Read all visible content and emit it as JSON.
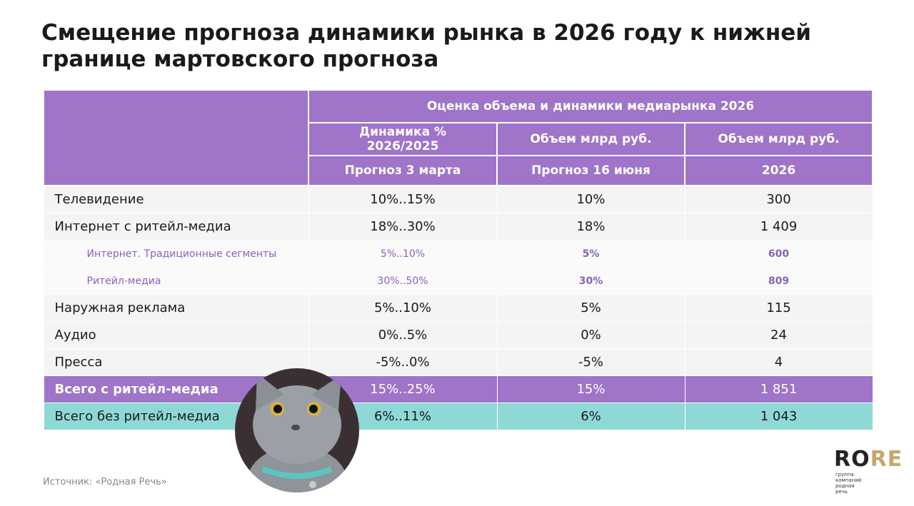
{
  "title": "Смещение прогноза динамики рынка в 2026 году к нижней границе мартовского прогноза",
  "table": {
    "group_header": "Оценка объема и динамики медиарынка 2026",
    "columns": [
      {
        "header": "Динамика % 2026/2025",
        "subheader": "Прогноз 3 марта"
      },
      {
        "header": "Объем млрд руб.",
        "subheader": "Прогноз 16 июня"
      },
      {
        "header": "Объем млрд руб.",
        "subheader": "2026"
      }
    ],
    "rows": [
      [
        "Телевидение",
        "10%..15%",
        "10%",
        "300"
      ],
      [
        "Интернет с ритейл-медиа",
        "18%..30%",
        "18%",
        "1 409"
      ],
      [
        "Интернет. Традиционные сегменты",
        "5%..10%",
        "5%",
        "600"
      ],
      [
        "Ритейл-медиа",
        "30%..50%",
        "30%",
        "809"
      ],
      [
        "Наружная реклама",
        "5%..10%",
        "5%",
        "115"
      ],
      [
        "Аудио",
        "0%..5%",
        "0%",
        "24"
      ],
      [
        "Пресса",
        "-5%..0%",
        "-5%",
        "4"
      ],
      [
        "Всего с ритейл-медиа",
        "15%..25%",
        "15%",
        "1 851"
      ],
      [
        "Всего без ритейл-медиа",
        "6%..11%",
        "6%",
        "1 043"
      ]
    ]
  },
  "source": "Источник: «Родная Речь»",
  "logo": {
    "name": "RORE",
    "tagline": "группа компаний родная речь"
  }
}
